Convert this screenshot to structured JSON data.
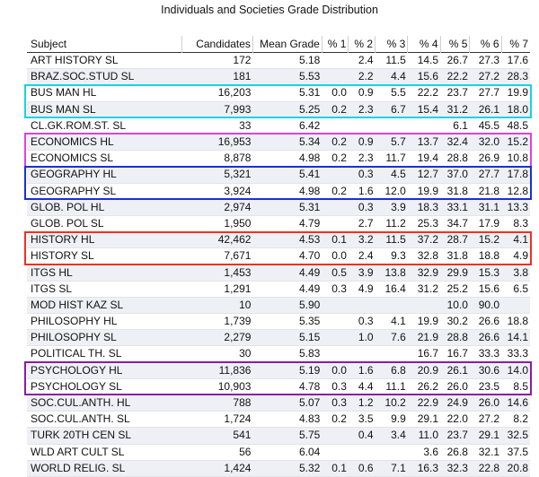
{
  "title": "Individuals and Societies Grade Distribution",
  "headers": [
    "Subject",
    "Candidates",
    "Mean Grade",
    "% 1",
    "% 2",
    "% 3",
    "% 4",
    "% 5",
    "% 6",
    "% 7"
  ],
  "rows": [
    [
      "ART HISTORY SL",
      "172",
      "5.18",
      "",
      "2.4",
      "11.5",
      "14.5",
      "26.7",
      "27.3",
      "17.6"
    ],
    [
      "BRAZ.SOC.STUD SL",
      "181",
      "5.53",
      "",
      "2.2",
      "4.4",
      "15.6",
      "22.2",
      "27.2",
      "28.3"
    ],
    [
      "BUS MAN HL",
      "16,203",
      "5.31",
      "0.0",
      "0.9",
      "5.5",
      "22.2",
      "23.7",
      "27.7",
      "19.9"
    ],
    [
      "BUS MAN SL",
      "7,993",
      "5.25",
      "0.2",
      "2.3",
      "6.7",
      "15.4",
      "31.2",
      "26.1",
      "18.0"
    ],
    [
      "CL.GK.ROM.ST. SL",
      "33",
      "6.42",
      "",
      "",
      "",
      "",
      "6.1",
      "45.5",
      "48.5"
    ],
    [
      "ECONOMICS HL",
      "16,953",
      "5.34",
      "0.2",
      "0.9",
      "5.7",
      "13.7",
      "32.4",
      "32.0",
      "15.2"
    ],
    [
      "ECONOMICS SL",
      "8,878",
      "4.98",
      "0.2",
      "2.3",
      "11.7",
      "19.4",
      "28.8",
      "26.9",
      "10.8"
    ],
    [
      "GEOGRAPHY HL",
      "5,321",
      "5.41",
      "",
      "0.3",
      "4.5",
      "12.7",
      "37.0",
      "27.7",
      "17.8"
    ],
    [
      "GEOGRAPHY SL",
      "3,924",
      "4.98",
      "0.2",
      "1.6",
      "12.0",
      "19.9",
      "31.8",
      "21.8",
      "12.8"
    ],
    [
      "GLOB. POL HL",
      "2,974",
      "5.31",
      "",
      "0.3",
      "3.9",
      "18.3",
      "33.1",
      "31.1",
      "13.3"
    ],
    [
      "GLOB. POL SL",
      "1,950",
      "4.79",
      "",
      "2.7",
      "11.2",
      "25.3",
      "34.7",
      "17.9",
      "8.3"
    ],
    [
      "HISTORY HL",
      "42,462",
      "4.53",
      "0.1",
      "3.2",
      "11.5",
      "37.2",
      "28.7",
      "15.2",
      "4.1"
    ],
    [
      "HISTORY SL",
      "7,671",
      "4.70",
      "0.0",
      "2.4",
      "9.3",
      "32.8",
      "31.8",
      "18.8",
      "4.9"
    ],
    [
      "ITGS HL",
      "1,453",
      "4.49",
      "0.5",
      "3.9",
      "13.8",
      "32.9",
      "29.9",
      "15.3",
      "3.8"
    ],
    [
      "ITGS SL",
      "1,291",
      "4.49",
      "0.3",
      "4.9",
      "16.4",
      "31.2",
      "25.2",
      "15.6",
      "6.5"
    ],
    [
      "MOD HIST KAZ SL",
      "10",
      "5.90",
      "",
      "",
      "",
      "",
      "10.0",
      "90.0",
      ""
    ],
    [
      "PHILOSOPHY HL",
      "1,739",
      "5.35",
      "",
      "0.3",
      "4.1",
      "19.9",
      "30.2",
      "26.6",
      "18.8"
    ],
    [
      "PHILOSOPHY SL",
      "2,279",
      "5.15",
      "",
      "1.0",
      "7.6",
      "21.9",
      "28.8",
      "26.6",
      "14.1"
    ],
    [
      "POLITICAL TH. SL",
      "30",
      "5.83",
      "",
      "",
      "",
      "16.7",
      "16.7",
      "33.3",
      "33.3"
    ],
    [
      "PSYCHOLOGY HL",
      "11,836",
      "5.19",
      "0.0",
      "1.6",
      "6.8",
      "20.9",
      "26.1",
      "30.6",
      "14.0"
    ],
    [
      "PSYCHOLOGY SL",
      "10,903",
      "4.78",
      "0.3",
      "4.4",
      "11.1",
      "26.2",
      "26.0",
      "23.5",
      "8.5"
    ],
    [
      "SOC.CUL.ANTH. HL",
      "788",
      "5.07",
      "0.3",
      "1.2",
      "10.2",
      "22.9",
      "24.9",
      "26.0",
      "14.6"
    ],
    [
      "SOC.CUL.ANTH. SL",
      "1,724",
      "4.83",
      "0.2",
      "3.5",
      "9.9",
      "29.1",
      "22.0",
      "27.2",
      "8.2"
    ],
    [
      "TURK 20TH CEN SL",
      "541",
      "5.75",
      "",
      "0.4",
      "3.4",
      "11.0",
      "23.7",
      "29.1",
      "32.5"
    ],
    [
      "WLD ART CULT SL",
      "56",
      "6.04",
      "",
      "",
      "",
      "3.6",
      "26.8",
      "32.1",
      "37.5"
    ],
    [
      "WORLD RELIG. SL",
      "1,424",
      "5.32",
      "0.1",
      "0.6",
      "7.1",
      "16.3",
      "32.3",
      "22.8",
      "20.8"
    ]
  ],
  "highlight_groups": [
    {
      "subjects": [
        "BUS MAN HL",
        "BUS MAN SL"
      ],
      "color": "#19d3e0"
    },
    {
      "subjects": [
        "ECONOMICS HL",
        "ECONOMICS SL"
      ],
      "color": "#e040e0"
    },
    {
      "subjects": [
        "GEOGRAPHY HL",
        "GEOGRAPHY SL"
      ],
      "color": "#1a2fd6"
    },
    {
      "subjects": [
        "HISTORY HL",
        "HISTORY SL"
      ],
      "color": "#f0301e"
    },
    {
      "subjects": [
        "PSYCHOLOGY HL",
        "PSYCHOLOGY SL"
      ],
      "color": "#8a1aa8"
    }
  ]
}
